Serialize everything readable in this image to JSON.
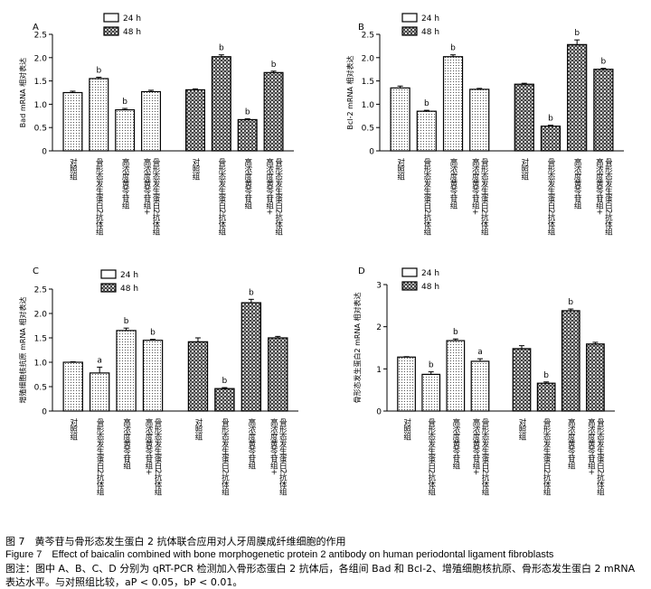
{
  "chart_data": [
    {
      "panel": "A",
      "type": "bar",
      "ylabel": "Bad mRNA 相对表达",
      "ylim": [
        0,
        2.5
      ],
      "yticks": [
        "0",
        "0.5",
        "1.0",
        "1.5",
        "2.0",
        "2.5"
      ],
      "legend": [
        "24 h",
        "48 h"
      ],
      "categories": [
        "对照组",
        "骨形态发生蛋白2抗体组",
        "高浓度黄芩苷组",
        "高浓度黄芩苷组+骨形态发生蛋白2抗体组"
      ],
      "series": [
        {
          "name": "24 h",
          "values": [
            1.25,
            1.55,
            0.88,
            1.27
          ],
          "errors": [
            0.03,
            0.03,
            0.03,
            0.03
          ],
          "labels": [
            "",
            "b",
            "b",
            ""
          ]
        },
        {
          "name": "48 h",
          "values": [
            1.31,
            2.02,
            0.67,
            1.68
          ],
          "errors": [
            0.02,
            0.04,
            0.02,
            0.03
          ],
          "labels": [
            "",
            "b",
            "b",
            "b"
          ]
        }
      ]
    },
    {
      "panel": "B",
      "type": "bar",
      "ylabel": "Bcl-2 mRNA 相对表达",
      "ylim": [
        0,
        2.5
      ],
      "yticks": [
        "0",
        "0.5",
        "1.0",
        "1.5",
        "2.0",
        "2.5"
      ],
      "legend": [
        "24 h",
        "48 h"
      ],
      "categories": [
        "对照组",
        "骨形态发生蛋白2抗体组",
        "高浓度黄芩苷组",
        "高浓度黄芩苷组+骨形态发生蛋白2抗体组"
      ],
      "series": [
        {
          "name": "24 h",
          "values": [
            1.35,
            0.85,
            2.02,
            1.32
          ],
          "errors": [
            0.04,
            0.02,
            0.04,
            0.02
          ],
          "labels": [
            "",
            "b",
            "b",
            ""
          ]
        },
        {
          "name": "48 h",
          "values": [
            1.43,
            0.53,
            2.28,
            1.75
          ],
          "errors": [
            0.02,
            0.02,
            0.1,
            0.02
          ],
          "labels": [
            "",
            "b",
            "b",
            "b"
          ]
        }
      ]
    },
    {
      "panel": "C",
      "type": "bar",
      "ylabel": "增殖细胞核抗原 mRNA 相对表达",
      "ylim": [
        0,
        2.5
      ],
      "yticks": [
        "0",
        "0.5",
        "1.0",
        "1.5",
        "2.0",
        "2.5"
      ],
      "legend": [
        "24 h",
        "48 h"
      ],
      "categories": [
        "对照组",
        "骨形态发生蛋白2抗体组",
        "高浓度黄芩苷组",
        "高浓度黄芩苷组+骨形态发生蛋白2抗体组"
      ],
      "series": [
        {
          "name": "24 h",
          "values": [
            1.0,
            0.78,
            1.65,
            1.45
          ],
          "errors": [
            0.01,
            0.12,
            0.05,
            0.02
          ],
          "labels": [
            "",
            "a",
            "b",
            "b"
          ]
        },
        {
          "name": "48 h",
          "values": [
            1.42,
            0.46,
            2.22,
            1.5
          ],
          "errors": [
            0.08,
            0.02,
            0.07,
            0.03
          ],
          "labels": [
            "",
            "b",
            "b",
            ""
          ]
        }
      ]
    },
    {
      "panel": "D",
      "type": "bar",
      "ylabel": "骨形态发生蛋白2 mRNA 相对表达",
      "ylim": [
        0,
        3
      ],
      "yticks": [
        "0",
        "1",
        "2",
        "3"
      ],
      "legend": [
        "24 h",
        "48 h"
      ],
      "categories": [
        "对照组",
        "骨形态发生蛋白2抗体组",
        "高浓度黄芩苷组",
        "高浓度黄芩苷组+骨形态发生蛋白2抗体组"
      ],
      "series": [
        {
          "name": "24 h",
          "values": [
            1.28,
            0.87,
            1.67,
            1.18
          ],
          "errors": [
            0.01,
            0.06,
            0.04,
            0.06
          ],
          "labels": [
            "",
            "b",
            "b",
            "a"
          ]
        },
        {
          "name": "48 h",
          "values": [
            1.48,
            0.66,
            2.38,
            1.59
          ],
          "errors": [
            0.07,
            0.03,
            0.04,
            0.04
          ],
          "labels": [
            "",
            "b",
            "b",
            ""
          ]
        }
      ]
    }
  ],
  "caption": {
    "line1": "图 7　黄芩苷与骨形态发生蛋白 2 抗体联合应用对人牙周膜成纤维细胞的作用",
    "line2": "Figure 7　Effect of baicalin combined with bone morphogenetic protein 2 antibody on human periodontal ligament fibroblasts",
    "line3": "图注：图中 A、B、C、D 分别为 qRT-PCR 检测加入骨形态蛋白 2 抗体后，各组间 Bad 和 Bcl-2、增殖细胞核抗原、骨形态发生蛋白 2 mRNA",
    "line4": "表达水平。与对照组比较，aP < 0.05，bP < 0.01。"
  }
}
